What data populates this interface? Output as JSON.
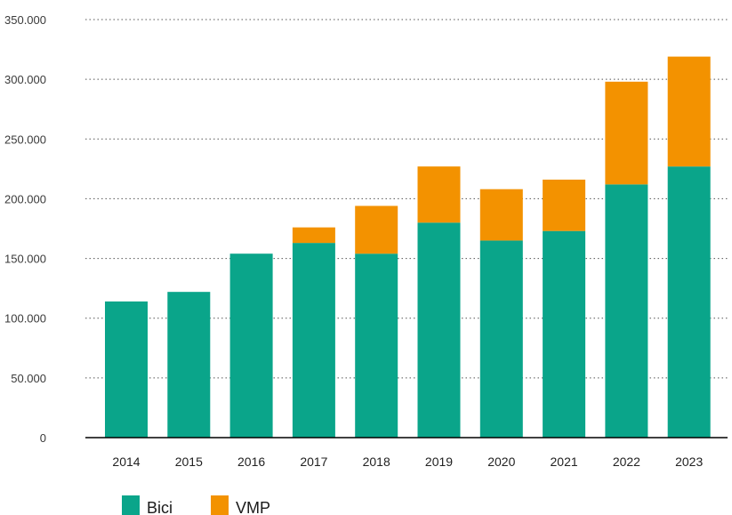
{
  "chart_data": {
    "type": "bar",
    "stacked": true,
    "categories": [
      "2014",
      "2015",
      "2016",
      "2017",
      "2018",
      "2019",
      "2020",
      "2021",
      "2022",
      "2023"
    ],
    "series": [
      {
        "name": "Bici",
        "color": "#0aa58a",
        "values": [
          114000,
          122000,
          154000,
          163000,
          154000,
          180000,
          165000,
          173000,
          212000,
          227000
        ]
      },
      {
        "name": "VMP",
        "color": "#f39200",
        "values": [
          0,
          0,
          0,
          13000,
          40000,
          47000,
          43000,
          43000,
          86000,
          92000
        ]
      }
    ],
    "ylim": [
      0,
      350000
    ],
    "y_ticks": [
      0,
      50000,
      100000,
      150000,
      200000,
      250000,
      300000,
      350000
    ],
    "y_tick_labels": [
      "0",
      "50.000",
      "100.000",
      "150.000",
      "200.000",
      "250.000",
      "300.000",
      "350.000"
    ],
    "grid": true,
    "legend_position": "bottom-left",
    "title": "",
    "xlabel": "",
    "ylabel": ""
  }
}
